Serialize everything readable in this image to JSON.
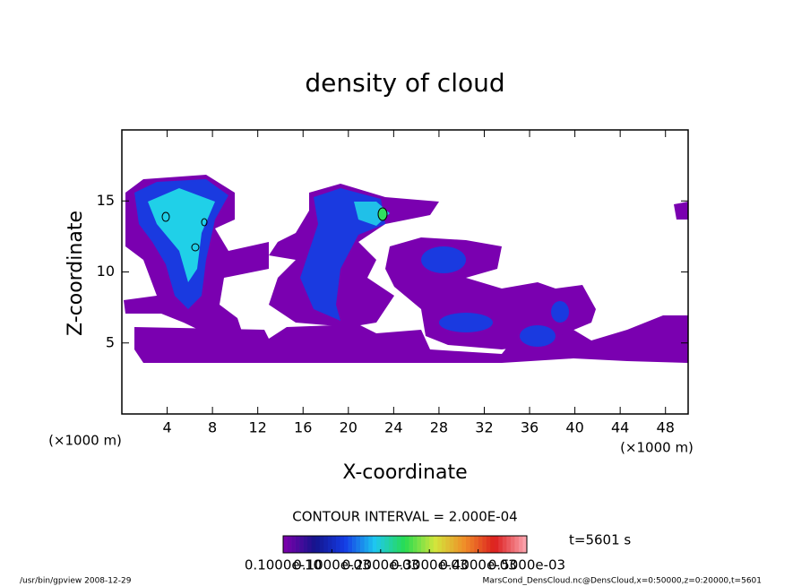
{
  "chart_data": {
    "type": "contour",
    "title": "density of cloud",
    "x_label": "X-coordinate",
    "y_label": "Z-coordinate",
    "x_unit": "(×1000 m)",
    "y_unit": "(×1000 m)",
    "xlim": [
      0,
      50
    ],
    "ylim": [
      0,
      20
    ],
    "xticks": [
      4,
      8,
      12,
      16,
      20,
      24,
      28,
      32,
      36,
      40,
      44,
      48
    ],
    "yticks": [
      5,
      10,
      15
    ],
    "contour_interval": "CONTOUR INTERVAL = 2.000E-04",
    "time": "t=5601 s",
    "colorbar": {
      "lim": [
        0,
        0.0005
      ],
      "ticks": [
        {
          "value": 1e-11,
          "label": "0.1000e-10"
        },
        {
          "value": 0.0001,
          "label": "0.1000e-03"
        },
        {
          "value": 0.0002,
          "label": "0.2000e-03"
        },
        {
          "value": 0.0003,
          "label": "0.3000e-03"
        },
        {
          "value": 0.0004,
          "label": "0.4000e-03"
        },
        {
          "value": 0.0005,
          "label": "0.5000e-03"
        }
      ]
    },
    "footer_left": "/usr/bin/gpview  2008-12-29",
    "footer_right": "MarsCond_DensCloud.nc@DensCloud,x=0:50000,z=0:20000,t=5601"
  }
}
